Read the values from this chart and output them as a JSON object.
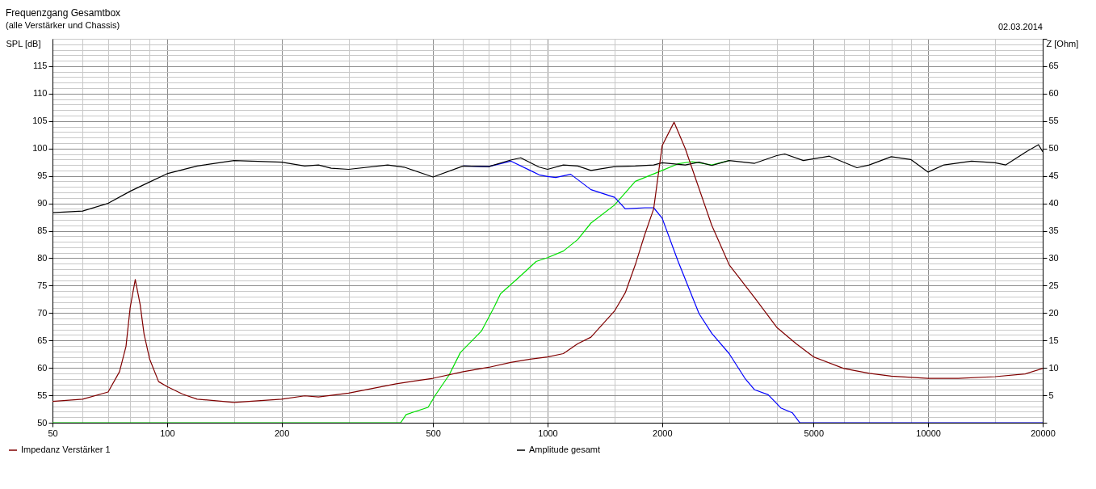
{
  "chart_data": {
    "type": "line",
    "title": "Frequenzgang Gesamtbox",
    "subtitle": "(alle Verstärker und Chassis)",
    "ylabel": "SPL [dB]",
    "y2label": "Z [Ohm]",
    "annotations": [
      "02.03.2014"
    ],
    "log": "x",
    "grid": true,
    "legend": "bottom",
    "xlim": [
      50,
      20000
    ],
    "xticks": [
      50,
      {
        "value": 60,
        "label": null
      },
      {
        "value": 70,
        "label": null
      },
      {
        "value": 80,
        "label": null
      },
      {
        "value": 90,
        "label": null
      },
      100,
      {
        "value": 150,
        "label": null
      },
      200,
      {
        "value": 300,
        "label": null
      },
      {
        "value": 400,
        "label": null
      },
      500,
      {
        "value": 600,
        "label": null
      },
      {
        "value": 700,
        "label": null
      },
      {
        "value": 800,
        "label": null
      },
      {
        "value": 900,
        "label": null
      },
      1000,
      {
        "value": 1500,
        "label": null
      },
      2000,
      {
        "value": 3000,
        "label": null
      },
      {
        "value": 4000,
        "label": null
      },
      5000,
      {
        "value": 6000,
        "label": null
      },
      {
        "value": 7000,
        "label": null
      },
      {
        "value": 8000,
        "label": null
      },
      {
        "value": 9000,
        "label": null
      },
      10000,
      {
        "value": 15000,
        "label": null
      },
      20000
    ],
    "ylim": [
      50,
      120
    ],
    "yticks": [
      50,
      {
        "value": 51,
        "label": null
      },
      {
        "value": 52,
        "label": null
      },
      {
        "value": 53,
        "label": null
      },
      {
        "value": 54,
        "label": null
      },
      55,
      {
        "value": 56,
        "label": null
      },
      {
        "value": 57,
        "label": null
      },
      {
        "value": 58,
        "label": null
      },
      {
        "value": 59,
        "label": null
      },
      60,
      {
        "value": 61,
        "label": null
      },
      {
        "value": 62,
        "label": null
      },
      {
        "value": 63,
        "label": null
      },
      {
        "value": 64,
        "label": null
      },
      65,
      {
        "value": 66,
        "label": null
      },
      {
        "value": 67,
        "label": null
      },
      {
        "value": 68,
        "label": null
      },
      {
        "value": 69,
        "label": null
      },
      70,
      {
        "value": 71,
        "label": null
      },
      {
        "value": 72,
        "label": null
      },
      {
        "value": 73,
        "label": null
      },
      {
        "value": 74,
        "label": null
      },
      75,
      {
        "value": 76,
        "label": null
      },
      {
        "value": 77,
        "label": null
      },
      {
        "value": 78,
        "label": null
      },
      {
        "value": 79,
        "label": null
      },
      80,
      {
        "value": 81,
        "label": null
      },
      {
        "value": 82,
        "label": null
      },
      {
        "value": 83,
        "label": null
      },
      {
        "value": 84,
        "label": null
      },
      85,
      {
        "value": 86,
        "label": null
      },
      {
        "value": 87,
        "label": null
      },
      {
        "value": 88,
        "label": null
      },
      {
        "value": 89,
        "label": null
      },
      90,
      {
        "value": 91,
        "label": null
      },
      {
        "value": 92,
        "label": null
      },
      {
        "value": 93,
        "label": null
      },
      {
        "value": 94,
        "label": null
      },
      95,
      {
        "value": 96,
        "label": null
      },
      {
        "value": 97,
        "label": null
      },
      {
        "value": 98,
        "label": null
      },
      {
        "value": 99,
        "label": null
      },
      100,
      {
        "value": 101,
        "label": null
      },
      {
        "value": 102,
        "label": null
      },
      {
        "value": 103,
        "label": null
      },
      {
        "value": 104,
        "label": null
      },
      105,
      {
        "value": 106,
        "label": null
      },
      {
        "value": 107,
        "label": null
      },
      {
        "value": 108,
        "label": null
      },
      {
        "value": 109,
        "label": null
      },
      110,
      {
        "value": 111,
        "label": null
      },
      {
        "value": 112,
        "label": null
      },
      {
        "value": 113,
        "label": null
      },
      {
        "value": 114,
        "label": null
      },
      115,
      {
        "value": 116,
        "label": null
      },
      {
        "value": 117,
        "label": null
      },
      {
        "value": 118,
        "label": null
      },
      {
        "value": 119,
        "label": null
      },
      {
        "value": 120,
        "label": null
      }
    ],
    "y2lim": [
      0,
      70
    ],
    "y2ticks": [
      {
        "value": 0,
        "label": null
      },
      5,
      10,
      15,
      20,
      25,
      30,
      35,
      40,
      45,
      50,
      55,
      60,
      65,
      {
        "value": 70,
        "label": null
      }
    ],
    "series": [
      {
        "name": "Impedanz Verstärker 1",
        "color": "#800000",
        "axis": "y2",
        "x": [
          50,
          60,
          70,
          75,
          78,
          80,
          82.5,
          85,
          87,
          90,
          95,
          100,
          110,
          120,
          150,
          200,
          230,
          250,
          300,
          400,
          500,
          600,
          700,
          800,
          900,
          1000,
          1100,
          1200,
          1300,
          1500,
          1600,
          1700,
          1800,
          1900,
          2000,
          2150,
          2300,
          2500,
          2700,
          3000,
          3500,
          4000,
          4500,
          5000,
          6000,
          7000,
          8000,
          10000,
          12000,
          15000,
          18000,
          20000
        ],
        "values": [
          3.9,
          4.3,
          5.6,
          9.3,
          13.9,
          21,
          26.1,
          21.5,
          16.2,
          11.6,
          7.5,
          6.6,
          5.2,
          4.3,
          3.7,
          4.3,
          4.9,
          4.7,
          5.4,
          7.1,
          8.1,
          9.3,
          10.1,
          11.0,
          11.6,
          12.0,
          12.6,
          14.4,
          15.6,
          20.4,
          23.7,
          28.8,
          34.3,
          39.0,
          50.5,
          54.8,
          50,
          42.7,
          36,
          28.8,
          22.8,
          17.4,
          14.4,
          12.0,
          9.9,
          9.0,
          8.5,
          8.1,
          8.1,
          8.4,
          8.9,
          9.9
        ]
      },
      {
        "color": "#00e000",
        "x": [
          50,
          411,
          425,
          485,
          509,
          551,
          590,
          670,
          724,
          752,
          847,
          933,
          1000,
          1100,
          1200,
          1300,
          1500,
          1700,
          2000,
          2200,
          2400,
          2700,
          3000
        ],
        "values": [
          50,
          50,
          51.5,
          52.8,
          55.2,
          58.7,
          62.8,
          66.7,
          71.1,
          73.5,
          76.7,
          79.4,
          80.1,
          81.3,
          83.4,
          86.4,
          89.7,
          94.0,
          96.0,
          97.2,
          97.6,
          97.0,
          97.8
        ]
      },
      {
        "color": "#0000ff",
        "x": [
          600,
          700,
          800,
          900,
          950,
          1000,
          1050,
          1150,
          1300,
          1500,
          1600,
          1800,
          1900,
          2000,
          2200,
          2500,
          2700,
          3000,
          3300,
          3500,
          3800,
          4100,
          4400,
          4600,
          20000
        ],
        "values": [
          96.8,
          96.7,
          97.7,
          96.0,
          95.2,
          94.9,
          94.7,
          95.3,
          92.5,
          91.1,
          89.0,
          89.2,
          89.2,
          87.3,
          79.5,
          69.9,
          66.3,
          62.6,
          58.1,
          56.0,
          55.1,
          52.7,
          51.8,
          50.0,
          50.0
        ]
      },
      {
        "name": "Amplitude gesamt",
        "color": "#000000",
        "x": [
          50,
          60,
          70,
          80,
          90,
          100,
          120,
          150,
          200,
          230,
          250,
          270,
          300,
          380,
          420,
          500,
          600,
          700,
          800,
          850,
          950,
          1000,
          1100,
          1200,
          1300,
          1500,
          1700,
          1900,
          2000,
          2300,
          2500,
          2700,
          3000,
          3500,
          4000,
          4200,
          4700,
          5500,
          6000,
          6500,
          7000,
          8000,
          9000,
          10000,
          11000,
          13000,
          15000,
          16000,
          18000,
          19500,
          20000
        ],
        "values": [
          88.3,
          88.6,
          90.0,
          92.2,
          93.9,
          95.4,
          96.8,
          97.8,
          97.5,
          96.8,
          97.0,
          96.4,
          96.2,
          97.0,
          96.6,
          94.8,
          96.8,
          96.7,
          97.9,
          98.3,
          96.6,
          96.2,
          97.0,
          96.8,
          96.0,
          96.7,
          96.8,
          97.0,
          97.4,
          97.0,
          97.5,
          96.9,
          97.8,
          97.3,
          98.7,
          99.0,
          97.8,
          98.6,
          97.5,
          96.5,
          97.0,
          98.5,
          98.0,
          95.7,
          97.0,
          97.7,
          97.4,
          97.0,
          99.3,
          100.7,
          99.4
        ]
      }
    ]
  }
}
